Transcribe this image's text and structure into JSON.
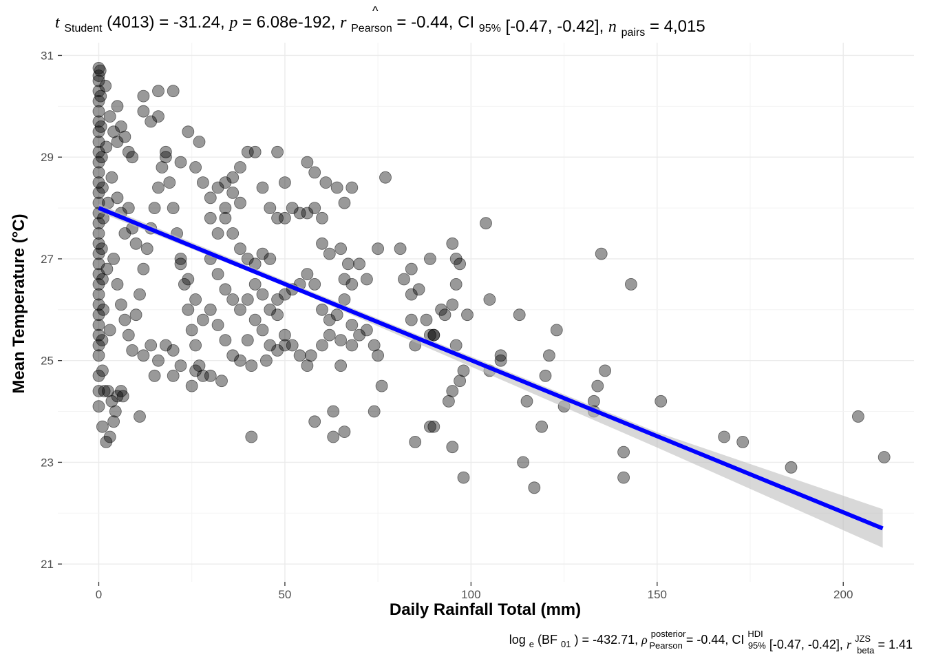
{
  "subtitle_parts": {
    "t_symbol": "t",
    "t_sub": "Student",
    "df": "(4013)",
    "t_value": "-31.24",
    "p_symbol": "p",
    "p_value": "6.08e-192",
    "r_symbol": "r",
    "r_sub": "Pearson",
    "r_value": "-0.44",
    "ci_label": "CI",
    "ci_sub": "95%",
    "ci_value": "[-0.47, -0.42]",
    "n_symbol": "n",
    "n_sub": "pairs",
    "n_value": "4,015"
  },
  "caption_parts": {
    "log_label": "log",
    "log_sub": "e",
    "bf_label": "(BF",
    "bf_sub": "01",
    "bf_close": ")",
    "bf_value": "-432.71",
    "rho_symbol": "ρ",
    "rho_sup": "posterior",
    "rho_sub": "Pearson",
    "rho_value": "-0.44",
    "ci_label": "CI",
    "ci_sup": "HDI",
    "ci_sub": "95%",
    "ci_value": "[-0.47, -0.42]",
    "r_symbol": "r",
    "r_sup": "JZS",
    "r_sub": "beta",
    "r_value": "1.41"
  },
  "chart_data": {
    "type": "scatter",
    "xlabel": "Daily Rainfall Total (mm)",
    "ylabel": "Mean Temperature (°C)",
    "xlim": [
      -11,
      219
    ],
    "ylim": [
      20.65,
      31.25
    ],
    "x_ticks": [
      0,
      50,
      100,
      150,
      200
    ],
    "y_ticks": [
      21,
      23,
      25,
      27,
      29,
      31
    ],
    "grid": true,
    "point_color": "#000000",
    "point_opacity": 0.4,
    "fit_color": "#0000ff",
    "band_color": "#bebebe",
    "fit_line": {
      "x": [
        0,
        210.6
      ],
      "y": [
        28.0,
        21.7
      ]
    },
    "confidence_band": {
      "x": [
        0,
        50,
        100,
        150,
        210.6
      ],
      "lower": [
        27.92,
        26.47,
        24.88,
        23.29,
        21.32
      ],
      "upper": [
        28.08,
        26.57,
        25.08,
        23.59,
        22.08
      ]
    },
    "points": [
      [
        0,
        30.75
      ],
      [
        0,
        30.6
      ],
      [
        0,
        30.5
      ],
      [
        0,
        30.3
      ],
      [
        0,
        30.1
      ],
      [
        0,
        29.9
      ],
      [
        0,
        29.7
      ],
      [
        0,
        29.5
      ],
      [
        0,
        29.3
      ],
      [
        0,
        29.1
      ],
      [
        0,
        28.9
      ],
      [
        0,
        28.7
      ],
      [
        0,
        28.5
      ],
      [
        0,
        28.3
      ],
      [
        0,
        28.1
      ],
      [
        0,
        27.9
      ],
      [
        0,
        27.7
      ],
      [
        0,
        27.5
      ],
      [
        0,
        27.3
      ],
      [
        0,
        27.1
      ],
      [
        0,
        26.9
      ],
      [
        0,
        26.7
      ],
      [
        0,
        26.5
      ],
      [
        0,
        26.3
      ],
      [
        0,
        26.1
      ],
      [
        0,
        25.9
      ],
      [
        0,
        25.7
      ],
      [
        0,
        25.5
      ],
      [
        0,
        25.3
      ],
      [
        0,
        25.1
      ],
      [
        0,
        24.7
      ],
      [
        0,
        24.4
      ],
      [
        0,
        24.1
      ],
      [
        0.4,
        30.7
      ],
      [
        0.5,
        30.2
      ],
      [
        0.6,
        29.6
      ],
      [
        0.8,
        29.0
      ],
      [
        1,
        28.4
      ],
      [
        1.2,
        27.8
      ],
      [
        0.8,
        27.2
      ],
      [
        1,
        26.6
      ],
      [
        1.2,
        26.0
      ],
      [
        0.9,
        25.4
      ],
      [
        1,
        24.8
      ],
      [
        1.5,
        24.4
      ],
      [
        2.5,
        24.4
      ],
      [
        1,
        23.7
      ],
      [
        2,
        23.4
      ],
      [
        3,
        23.5
      ],
      [
        1.8,
        30.4
      ],
      [
        2,
        29.2
      ],
      [
        2.5,
        28.1
      ],
      [
        2.2,
        26.8
      ],
      [
        3,
        25.6
      ],
      [
        3.5,
        24.2
      ],
      [
        4,
        23.8
      ],
      [
        4.5,
        24.0
      ],
      [
        5,
        24.3
      ],
      [
        6,
        24.4
      ],
      [
        6.5,
        24.3
      ],
      [
        5,
        30.0
      ],
      [
        3,
        29.8
      ],
      [
        4,
        29.5
      ],
      [
        5,
        29.3
      ],
      [
        6,
        29.6
      ],
      [
        7,
        29.4
      ],
      [
        8,
        29.1
      ],
      [
        9,
        29.0
      ],
      [
        3.5,
        28.6
      ],
      [
        5,
        28.2
      ],
      [
        6,
        27.9
      ],
      [
        7,
        27.5
      ],
      [
        8,
        28.0
      ],
      [
        9,
        27.6
      ],
      [
        10,
        27.3
      ],
      [
        4,
        27.0
      ],
      [
        5,
        26.5
      ],
      [
        6,
        26.1
      ],
      [
        7,
        25.8
      ],
      [
        8,
        25.5
      ],
      [
        9,
        25.2
      ],
      [
        10,
        25.9
      ],
      [
        11,
        26.3
      ],
      [
        12,
        26.8
      ],
      [
        13,
        27.2
      ],
      [
        14,
        27.6
      ],
      [
        15,
        28.0
      ],
      [
        16,
        28.4
      ],
      [
        17,
        28.8
      ],
      [
        18,
        29.1
      ],
      [
        19,
        28.5
      ],
      [
        20,
        28.0
      ],
      [
        21,
        27.5
      ],
      [
        22,
        27.0
      ],
      [
        23,
        26.5
      ],
      [
        24,
        26.0
      ],
      [
        25,
        25.6
      ],
      [
        26,
        25.3
      ],
      [
        27,
        24.9
      ],
      [
        28,
        24.7
      ],
      [
        12,
        25.1
      ],
      [
        14,
        25.3
      ],
      [
        16,
        25.0
      ],
      [
        18,
        25.3
      ],
      [
        20,
        25.2
      ],
      [
        22,
        24.9
      ],
      [
        11,
        23.9
      ],
      [
        15,
        24.7
      ],
      [
        20,
        24.7
      ],
      [
        25,
        24.5
      ],
      [
        26,
        24.8
      ],
      [
        30,
        24.7
      ],
      [
        33,
        24.6
      ],
      [
        12,
        30.2
      ],
      [
        16,
        30.3
      ],
      [
        20,
        30.3
      ],
      [
        14,
        29.7
      ],
      [
        16,
        29.8
      ],
      [
        12,
        29.9
      ],
      [
        24,
        29.5
      ],
      [
        27,
        29.3
      ],
      [
        18,
        29.0
      ],
      [
        22,
        28.9
      ],
      [
        26,
        28.8
      ],
      [
        28,
        28.5
      ],
      [
        30,
        28.2
      ],
      [
        32,
        28.4
      ],
      [
        34,
        28.5
      ],
      [
        36,
        28.3
      ],
      [
        38,
        28.1
      ],
      [
        30,
        27.8
      ],
      [
        32,
        27.5
      ],
      [
        34,
        27.8
      ],
      [
        36,
        27.5
      ],
      [
        38,
        27.2
      ],
      [
        40,
        27.0
      ],
      [
        42,
        26.9
      ],
      [
        44,
        27.1
      ],
      [
        46,
        27.0
      ],
      [
        30,
        27.0
      ],
      [
        32,
        26.7
      ],
      [
        34,
        26.4
      ],
      [
        36,
        26.2
      ],
      [
        38,
        26.0
      ],
      [
        40,
        26.2
      ],
      [
        42,
        26.5
      ],
      [
        44,
        26.3
      ],
      [
        46,
        26.0
      ],
      [
        48,
        26.2
      ],
      [
        50,
        26.3
      ],
      [
        52,
        26.4
      ],
      [
        54,
        26.5
      ],
      [
        56,
        26.7
      ],
      [
        58,
        26.5
      ],
      [
        30,
        26.0
      ],
      [
        32,
        25.7
      ],
      [
        34,
        25.4
      ],
      [
        28,
        25.8
      ],
      [
        26,
        26.2
      ],
      [
        24,
        26.6
      ],
      [
        22,
        26.9
      ],
      [
        36,
        25.1
      ],
      [
        38,
        25.0
      ],
      [
        40,
        25.4
      ],
      [
        42,
        25.8
      ],
      [
        44,
        25.6
      ],
      [
        46,
        25.3
      ],
      [
        48,
        25.9
      ],
      [
        50,
        25.5
      ],
      [
        52,
        25.3
      ],
      [
        54,
        25.1
      ],
      [
        56,
        24.9
      ],
      [
        57,
        25.1
      ],
      [
        34,
        28.0
      ],
      [
        36,
        28.6
      ],
      [
        38,
        28.8
      ],
      [
        40,
        29.1
      ],
      [
        42,
        29.1
      ],
      [
        44,
        28.4
      ],
      [
        46,
        28.0
      ],
      [
        48,
        29.1
      ],
      [
        50,
        28.5
      ],
      [
        48,
        27.8
      ],
      [
        50,
        27.8
      ],
      [
        52,
        28.0
      ],
      [
        54,
        27.9
      ],
      [
        56,
        27.9
      ],
      [
        58,
        28.0
      ],
      [
        60,
        27.8
      ],
      [
        56,
        28.9
      ],
      [
        58,
        28.7
      ],
      [
        61,
        28.5
      ],
      [
        64,
        28.4
      ],
      [
        66,
        28.1
      ],
      [
        68,
        28.4
      ],
      [
        77,
        28.6
      ],
      [
        60,
        27.3
      ],
      [
        62,
        27.1
      ],
      [
        65,
        27.2
      ],
      [
        67,
        26.9
      ],
      [
        70,
        26.9
      ],
      [
        66,
        26.6
      ],
      [
        68,
        26.5
      ],
      [
        72,
        26.6
      ],
      [
        60,
        26.0
      ],
      [
        62,
        25.8
      ],
      [
        64,
        25.9
      ],
      [
        66,
        26.2
      ],
      [
        68,
        25.7
      ],
      [
        60,
        25.3
      ],
      [
        62,
        25.5
      ],
      [
        65,
        25.4
      ],
      [
        68,
        25.3
      ],
      [
        70,
        25.5
      ],
      [
        72,
        25.6
      ],
      [
        74,
        25.3
      ],
      [
        75,
        25.1
      ],
      [
        65,
        24.9
      ],
      [
        74,
        24.0
      ],
      [
        76,
        24.5
      ],
      [
        58,
        23.8
      ],
      [
        63,
        23.5
      ],
      [
        63,
        24.0
      ],
      [
        66,
        23.6
      ],
      [
        41,
        23.5
      ],
      [
        41,
        24.9
      ],
      [
        45,
        25.0
      ],
      [
        48,
        25.2
      ],
      [
        50,
        25.3
      ],
      [
        75,
        27.2
      ],
      [
        81,
        27.2
      ],
      [
        82,
        26.6
      ],
      [
        84,
        26.8
      ],
      [
        86,
        26.4
      ],
      [
        84,
        26.3
      ],
      [
        89,
        27.0
      ],
      [
        89,
        25.5
      ],
      [
        90,
        25.5
      ],
      [
        92,
        26.0
      ],
      [
        93,
        25.9
      ],
      [
        95,
        26.1
      ],
      [
        96,
        26.5
      ],
      [
        95,
        27.3
      ],
      [
        96,
        27.0
      ],
      [
        97,
        26.9
      ],
      [
        99,
        25.9
      ],
      [
        88,
        25.8
      ],
      [
        84,
        25.8
      ],
      [
        85,
        25.3
      ],
      [
        90,
        25.5
      ],
      [
        96,
        25.3
      ],
      [
        97,
        24.6
      ],
      [
        98,
        24.8
      ],
      [
        95,
        24.4
      ],
      [
        94,
        24.2
      ],
      [
        85,
        23.4
      ],
      [
        89,
        23.7
      ],
      [
        90,
        23.7
      ],
      [
        95,
        23.3
      ],
      [
        98,
        22.7
      ],
      [
        104,
        27.7
      ],
      [
        105,
        26.2
      ],
      [
        105,
        24.8
      ],
      [
        108,
        25.1
      ],
      [
        108,
        25.0
      ],
      [
        113,
        25.9
      ],
      [
        115,
        24.2
      ],
      [
        114,
        23.0
      ],
      [
        117,
        22.5
      ],
      [
        119,
        23.7
      ],
      [
        120,
        24.7
      ],
      [
        121,
        25.1
      ],
      [
        123,
        25.6
      ],
      [
        125,
        24.1
      ],
      [
        133,
        24.2
      ],
      [
        133,
        24.0
      ],
      [
        134,
        24.5
      ],
      [
        136,
        24.8
      ],
      [
        135,
        27.1
      ],
      [
        141,
        23.2
      ],
      [
        141,
        22.7
      ],
      [
        143,
        26.5
      ],
      [
        151,
        24.2
      ],
      [
        168,
        23.5
      ],
      [
        173,
        23.4
      ],
      [
        186,
        22.9
      ],
      [
        204,
        23.9
      ],
      [
        211,
        23.1
      ]
    ]
  }
}
